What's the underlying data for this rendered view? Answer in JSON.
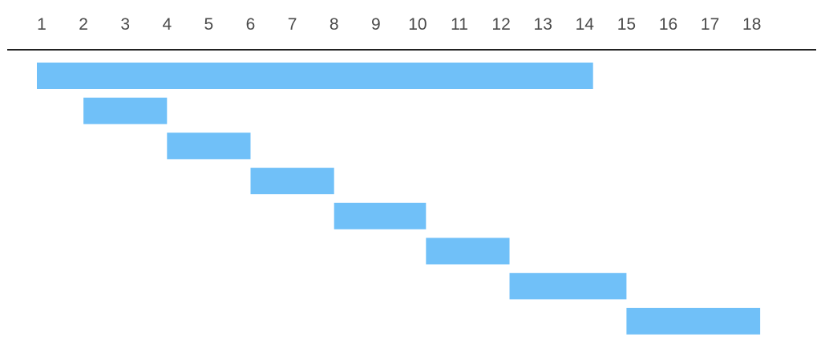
{
  "colors": {
    "bar": "#70c0f8",
    "axis_line": "#222222",
    "tick_text": "#4a4a4a"
  },
  "chart_data": {
    "type": "gantt",
    "title": "",
    "xlabel": "",
    "ylabel": "",
    "xlim": [
      1,
      18
    ],
    "x_ticks": [
      "1",
      "2",
      "3",
      "4",
      "5",
      "6",
      "7",
      "8",
      "9",
      "10",
      "11",
      "12",
      "13",
      "14",
      "15",
      "16",
      "17",
      "18"
    ],
    "axis_position": "top",
    "grid": false,
    "legend": "none",
    "tasks": [
      {
        "start": 1.0,
        "end": 14.2
      },
      {
        "start": 2.0,
        "end": 4.0
      },
      {
        "start": 4.0,
        "end": 6.0
      },
      {
        "start": 6.0,
        "end": 8.0
      },
      {
        "start": 8.0,
        "end": 10.2
      },
      {
        "start": 10.2,
        "end": 12.2
      },
      {
        "start": 12.2,
        "end": 15.0
      },
      {
        "start": 15.0,
        "end": 18.2
      }
    ]
  }
}
